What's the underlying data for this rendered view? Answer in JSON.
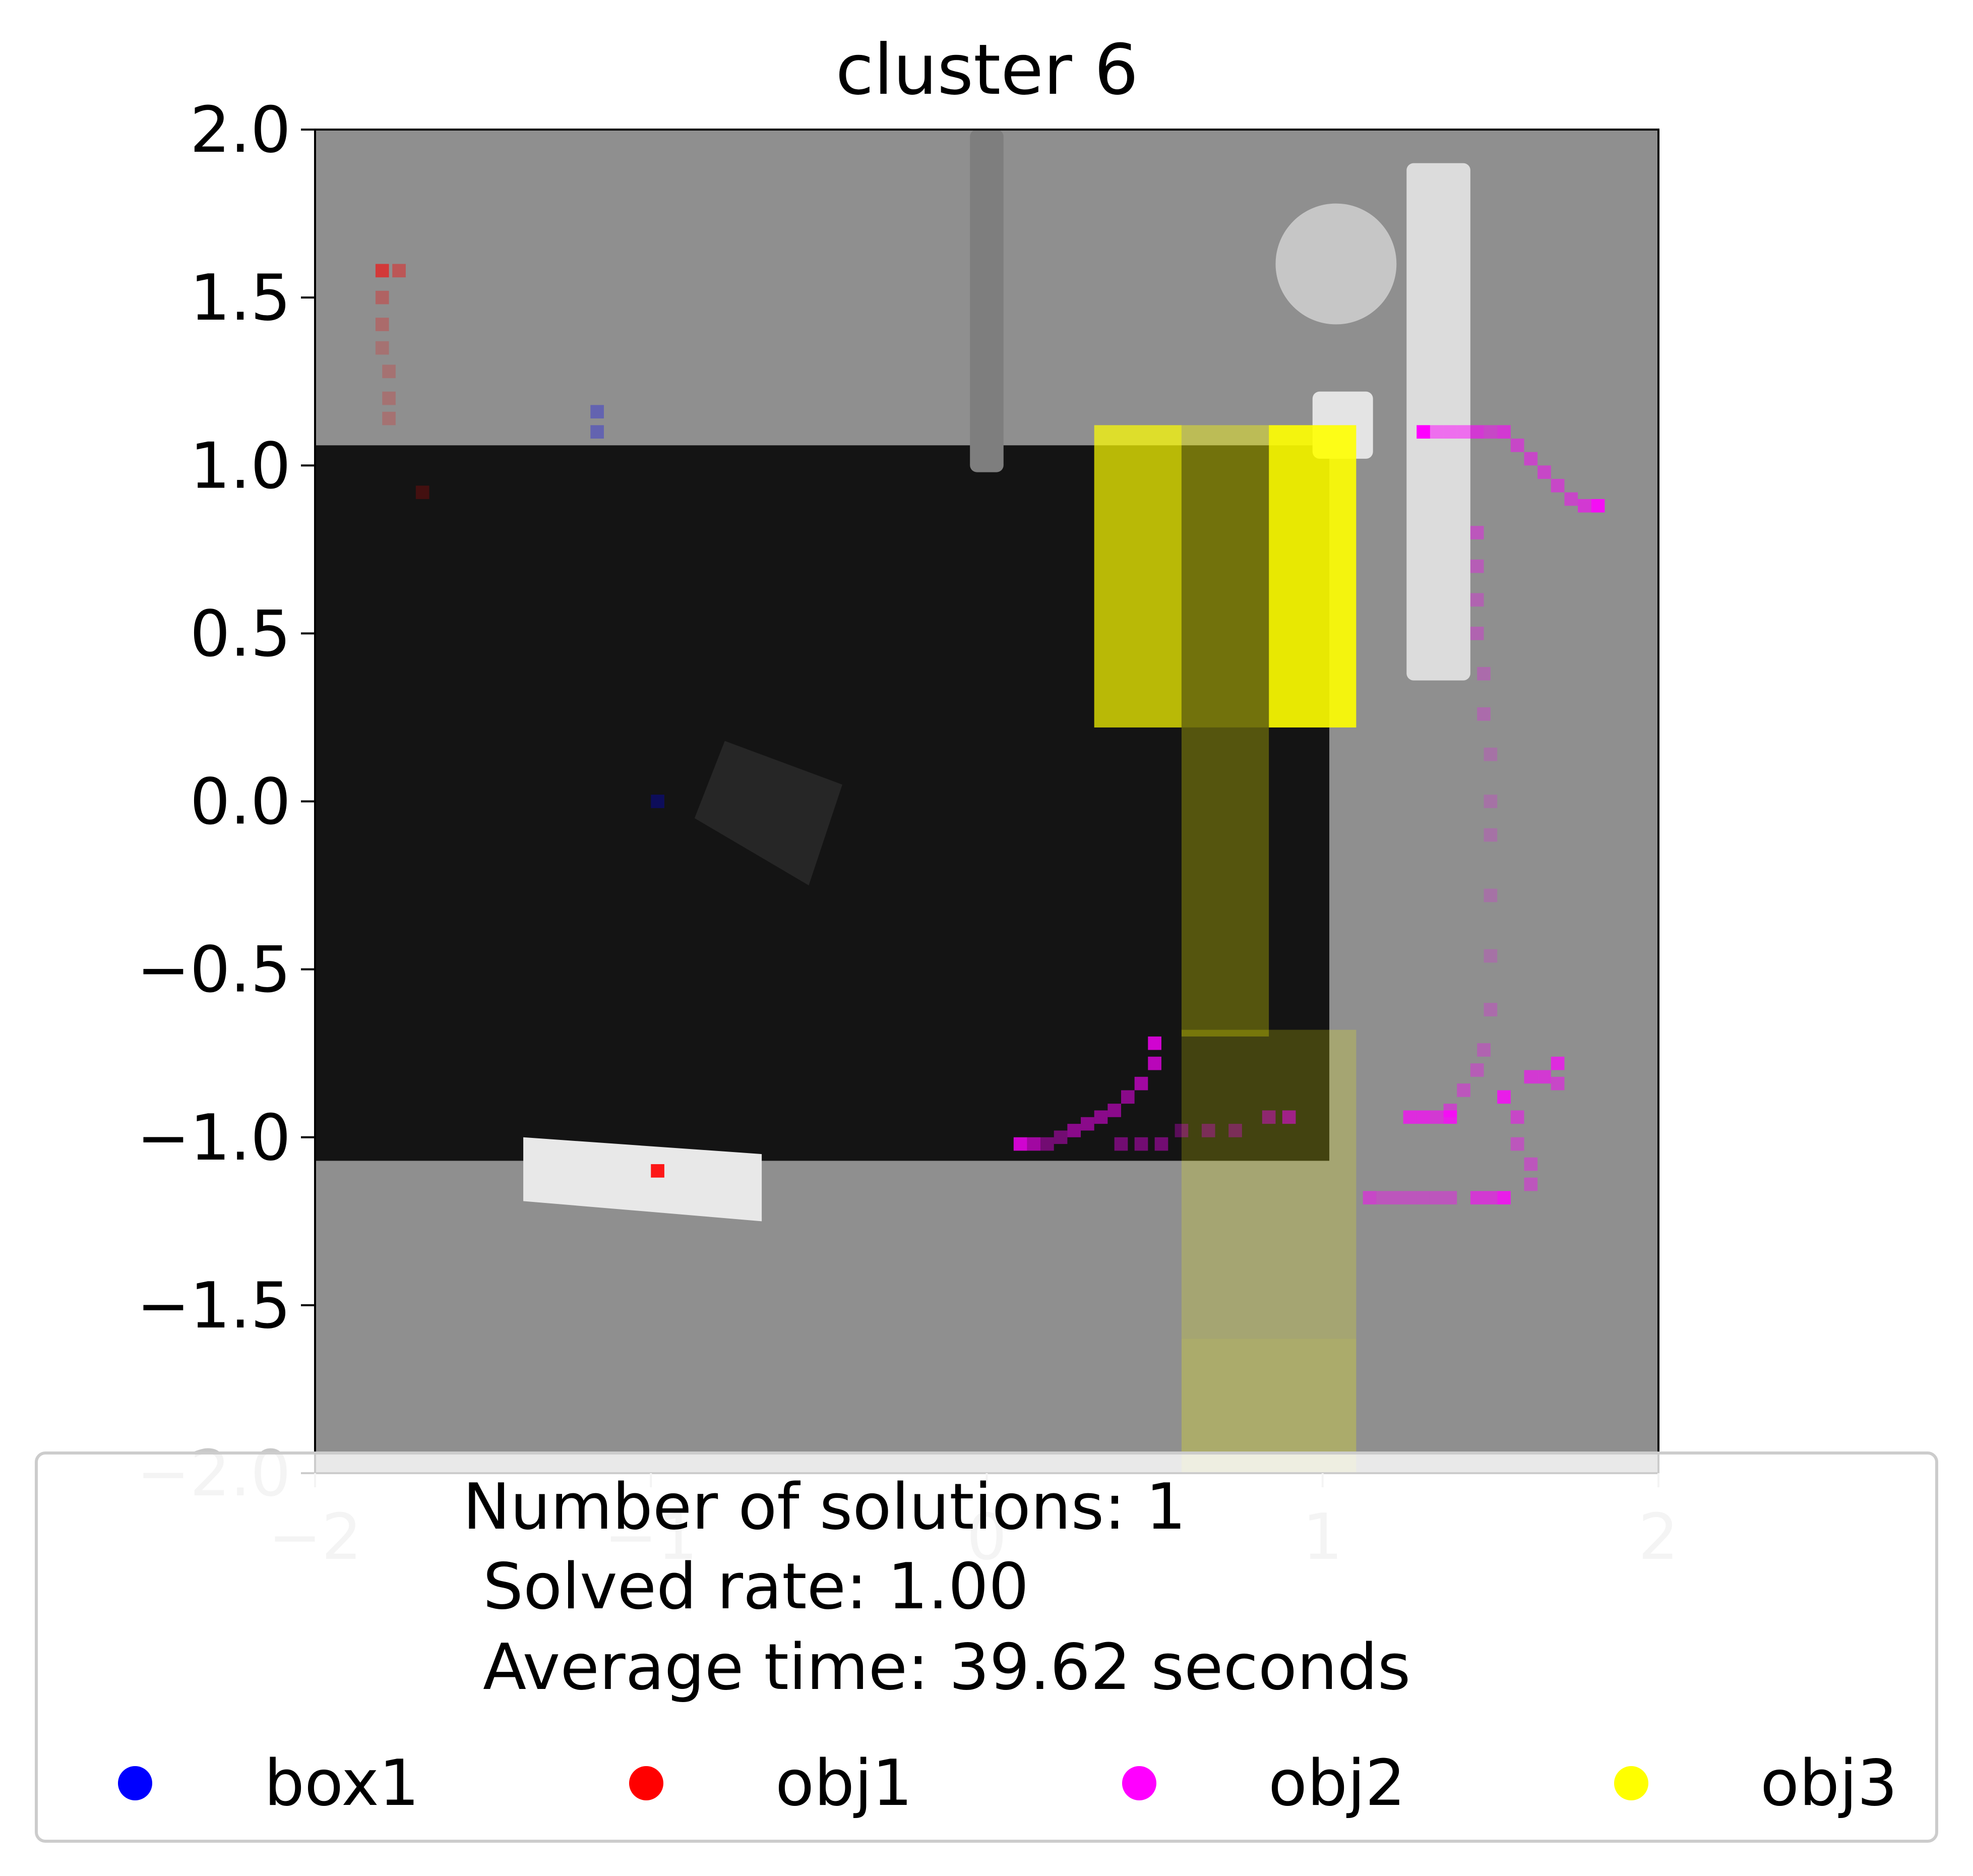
{
  "chart_data": {
    "type": "heatmap",
    "title": "cluster 6",
    "xlabel": "",
    "ylabel": "",
    "xlim": [
      -2,
      2
    ],
    "ylim": [
      -2,
      2
    ],
    "grid": false,
    "x_ticks": [
      "−2",
      "−1",
      "0",
      "1",
      "2"
    ],
    "y_ticks": [
      "2.0",
      "1.5",
      "1.0",
      "0.5",
      "0.0",
      "−0.5",
      "−1.0",
      "−1.5",
      "−2.0"
    ],
    "legend_placement": "bottom",
    "legend": {
      "summary": [
        "Number of solutions: 1",
        "Solved rate: 1.00",
        "Average time: 39.62 seconds"
      ],
      "entries": [
        {
          "label": "box1",
          "color": "#0000ff"
        },
        {
          "label": "obj1",
          "color": "#ff0000"
        },
        {
          "label": "obj2",
          "color": "#ff00ff"
        },
        {
          "label": "obj3",
          "color": "#ffff00"
        }
      ]
    },
    "background": {
      "floor_color": "#8f8f8f",
      "table_color": "#141414",
      "table": {
        "x": [
          -2.0,
          1.02
        ],
        "y": [
          -1.07,
          1.06
        ]
      },
      "objects": [
        {
          "name": "pole",
          "shape": "rect",
          "x": [
            -0.05,
            0.05
          ],
          "y": [
            0.98,
            2.0
          ],
          "color": "#7e7e7e"
        },
        {
          "name": "cylinder",
          "shape": "circle",
          "cx": 1.04,
          "cy": 1.6,
          "r": 0.18,
          "color": "#c6c6c6"
        },
        {
          "name": "tall-block",
          "shape": "rect",
          "x": [
            1.25,
            1.44
          ],
          "y": [
            0.36,
            1.9
          ],
          "color": "#dcdcdc"
        },
        {
          "name": "small-block",
          "shape": "rect",
          "x": [
            0.97,
            1.15
          ],
          "y": [
            1.02,
            1.22
          ],
          "color": "#e4e4e4"
        },
        {
          "name": "long-block",
          "shape": "poly",
          "points": [
            [
              -1.38,
              -1.0
            ],
            [
              -0.67,
              -1.05
            ],
            [
              -0.67,
              -1.25
            ],
            [
              -1.38,
              -1.19
            ]
          ],
          "color": "#e8e8e8"
        },
        {
          "name": "dark-box",
          "shape": "poly",
          "points": [
            [
              -0.87,
              -0.05
            ],
            [
              -0.53,
              -0.25
            ],
            [
              -0.43,
              0.05
            ],
            [
              -0.78,
              0.18
            ]
          ],
          "color": "#262626"
        }
      ]
    },
    "series": [
      {
        "name": "obj3",
        "color": "#ffff00",
        "cells": [
          {
            "x": [
              0.32,
              0.58
            ],
            "y": [
              0.22,
              1.12
            ],
            "intensity": 0.7
          },
          {
            "x": [
              0.58,
              0.84
            ],
            "y": [
              0.22,
              1.12
            ],
            "intensity": 0.4
          },
          {
            "x": [
              0.84,
              1.1
            ],
            "y": [
              0.22,
              1.12
            ],
            "intensity": 0.9
          },
          {
            "x": [
              0.58,
              0.84
            ],
            "y": [
              -0.7,
              0.22
            ],
            "intensity": 0.28
          },
          {
            "x": [
              0.58,
              1.1
            ],
            "y": [
              -1.6,
              -0.68
            ],
            "intensity": 0.2
          },
          {
            "x": [
              0.58,
              1.1
            ],
            "y": [
              -2.0,
              -1.6
            ],
            "intensity": 0.25
          }
        ]
      },
      {
        "name": "obj2",
        "color": "#ff00ff",
        "cells": [
          {
            "x": 1.28,
            "y": 1.1,
            "intensity": 1.0
          },
          {
            "x": 1.32,
            "y": 1.1,
            "intensity": 0.5
          },
          {
            "x": 1.36,
            "y": 1.1,
            "intensity": 0.5
          },
          {
            "x": 1.4,
            "y": 1.1,
            "intensity": 0.5
          },
          {
            "x": 1.44,
            "y": 1.1,
            "intensity": 0.6
          },
          {
            "x": 1.48,
            "y": 1.1,
            "intensity": 0.5
          },
          {
            "x": 1.52,
            "y": 1.1,
            "intensity": 0.6
          },
          {
            "x": 1.56,
            "y": 1.06,
            "intensity": 0.5
          },
          {
            "x": 1.6,
            "y": 1.02,
            "intensity": 0.5
          },
          {
            "x": 1.64,
            "y": 0.98,
            "intensity": 0.5
          },
          {
            "x": 1.68,
            "y": 0.94,
            "intensity": 0.5
          },
          {
            "x": 1.72,
            "y": 0.9,
            "intensity": 0.5
          },
          {
            "x": 1.76,
            "y": 0.88,
            "intensity": 0.6
          },
          {
            "x": 1.8,
            "y": 0.88,
            "intensity": 0.9
          },
          {
            "x": 1.44,
            "y": 0.8,
            "intensity": 0.4
          },
          {
            "x": 1.44,
            "y": 0.7,
            "intensity": 0.35
          },
          {
            "x": 1.44,
            "y": 0.6,
            "intensity": 0.3
          },
          {
            "x": 1.44,
            "y": 0.5,
            "intensity": 0.3
          },
          {
            "x": 1.46,
            "y": 0.38,
            "intensity": 0.25
          },
          {
            "x": 1.46,
            "y": 0.26,
            "intensity": 0.25
          },
          {
            "x": 1.48,
            "y": 0.14,
            "intensity": 0.2
          },
          {
            "x": 1.48,
            "y": 0.0,
            "intensity": 0.2
          },
          {
            "x": 1.48,
            "y": -0.1,
            "intensity": 0.2
          },
          {
            "x": 1.48,
            "y": -0.28,
            "intensity": 0.2
          },
          {
            "x": 1.48,
            "y": -0.46,
            "intensity": 0.2
          },
          {
            "x": 1.48,
            "y": -0.62,
            "intensity": 0.25
          },
          {
            "x": 1.46,
            "y": -0.74,
            "intensity": 0.3
          },
          {
            "x": 1.44,
            "y": -0.8,
            "intensity": 0.35
          },
          {
            "x": 1.4,
            "y": -0.86,
            "intensity": 0.4
          },
          {
            "x": 1.36,
            "y": -0.92,
            "intensity": 0.5
          },
          {
            "x": 1.24,
            "y": -0.94,
            "intensity": 0.7
          },
          {
            "x": 1.28,
            "y": -0.94,
            "intensity": 0.7
          },
          {
            "x": 1.32,
            "y": -0.94,
            "intensity": 0.6
          },
          {
            "x": 1.36,
            "y": -0.94,
            "intensity": 0.8
          },
          {
            "x": 1.52,
            "y": -0.88,
            "intensity": 0.8
          },
          {
            "x": 1.56,
            "y": -0.94,
            "intensity": 0.5
          },
          {
            "x": 1.6,
            "y": -0.82,
            "intensity": 0.6
          },
          {
            "x": 1.64,
            "y": -0.82,
            "intensity": 0.6
          },
          {
            "x": 1.68,
            "y": -0.78,
            "intensity": 0.7
          },
          {
            "x": 1.68,
            "y": -0.84,
            "intensity": 0.5
          },
          {
            "x": 1.56,
            "y": -1.02,
            "intensity": 0.4
          },
          {
            "x": 1.6,
            "y": -1.08,
            "intensity": 0.4
          },
          {
            "x": 1.6,
            "y": -1.14,
            "intensity": 0.4
          },
          {
            "x": 1.12,
            "y": -1.18,
            "intensity": 0.5
          },
          {
            "x": 1.16,
            "y": -1.18,
            "intensity": 0.4
          },
          {
            "x": 1.2,
            "y": -1.18,
            "intensity": 0.4
          },
          {
            "x": 1.24,
            "y": -1.18,
            "intensity": 0.4
          },
          {
            "x": 1.28,
            "y": -1.18,
            "intensity": 0.4
          },
          {
            "x": 1.32,
            "y": -1.18,
            "intensity": 0.4
          },
          {
            "x": 1.36,
            "y": -1.18,
            "intensity": 0.4
          },
          {
            "x": 1.44,
            "y": -1.18,
            "intensity": 0.6
          },
          {
            "x": 1.48,
            "y": -1.18,
            "intensity": 0.6
          },
          {
            "x": 1.52,
            "y": -1.18,
            "intensity": 0.8
          },
          {
            "x": 0.48,
            "y": -0.72,
            "intensity": 0.8
          },
          {
            "x": 0.48,
            "y": -0.78,
            "intensity": 0.7
          },
          {
            "x": 0.44,
            "y": -0.84,
            "intensity": 0.6
          },
          {
            "x": 0.4,
            "y": -0.88,
            "intensity": 0.5
          },
          {
            "x": 0.36,
            "y": -0.92,
            "intensity": 0.5
          },
          {
            "x": 0.32,
            "y": -0.94,
            "intensity": 0.5
          },
          {
            "x": 0.28,
            "y": -0.96,
            "intensity": 0.5
          },
          {
            "x": 0.24,
            "y": -0.98,
            "intensity": 0.5
          },
          {
            "x": 0.2,
            "y": -1.0,
            "intensity": 0.4
          },
          {
            "x": 0.16,
            "y": -1.02,
            "intensity": 0.4
          },
          {
            "x": 0.12,
            "y": -1.02,
            "intensity": 0.6
          },
          {
            "x": 0.08,
            "y": -1.02,
            "intensity": 0.8
          },
          {
            "x": 0.38,
            "y": -1.02,
            "intensity": 0.4
          },
          {
            "x": 0.44,
            "y": -1.02,
            "intensity": 0.4
          },
          {
            "x": 0.5,
            "y": -1.02,
            "intensity": 0.4
          },
          {
            "x": 0.56,
            "y": -0.98,
            "intensity": 0.3
          },
          {
            "x": 0.64,
            "y": -0.98,
            "intensity": 0.3
          },
          {
            "x": 0.72,
            "y": -0.98,
            "intensity": 0.3
          },
          {
            "x": 0.82,
            "y": -0.94,
            "intensity": 0.4
          },
          {
            "x": 0.88,
            "y": -0.94,
            "intensity": 0.5
          }
        ]
      },
      {
        "name": "obj1",
        "color": "#ff0000",
        "cells": [
          {
            "x": -1.82,
            "y": 1.58,
            "intensity": 0.6
          },
          {
            "x": -1.77,
            "y": 1.58,
            "intensity": 0.4
          },
          {
            "x": -1.82,
            "y": 1.5,
            "intensity": 0.3
          },
          {
            "x": -1.82,
            "y": 1.42,
            "intensity": 0.25
          },
          {
            "x": -1.82,
            "y": 1.35,
            "intensity": 0.2
          },
          {
            "x": -1.8,
            "y": 1.28,
            "intensity": 0.2
          },
          {
            "x": -1.8,
            "y": 1.2,
            "intensity": 0.2
          },
          {
            "x": -1.8,
            "y": 1.14,
            "intensity": 0.2
          },
          {
            "x": -1.7,
            "y": 0.92,
            "intensity": 0.2
          },
          {
            "x": -1.0,
            "y": -1.1,
            "intensity": 0.9
          }
        ]
      },
      {
        "name": "box1",
        "color": "#0000ff",
        "cells": [
          {
            "x": -1.18,
            "y": 1.16,
            "intensity": 0.3
          },
          {
            "x": -1.18,
            "y": 1.1,
            "intensity": 0.3
          },
          {
            "x": -1.0,
            "y": 0.0,
            "intensity": 0.3
          }
        ]
      }
    ]
  }
}
